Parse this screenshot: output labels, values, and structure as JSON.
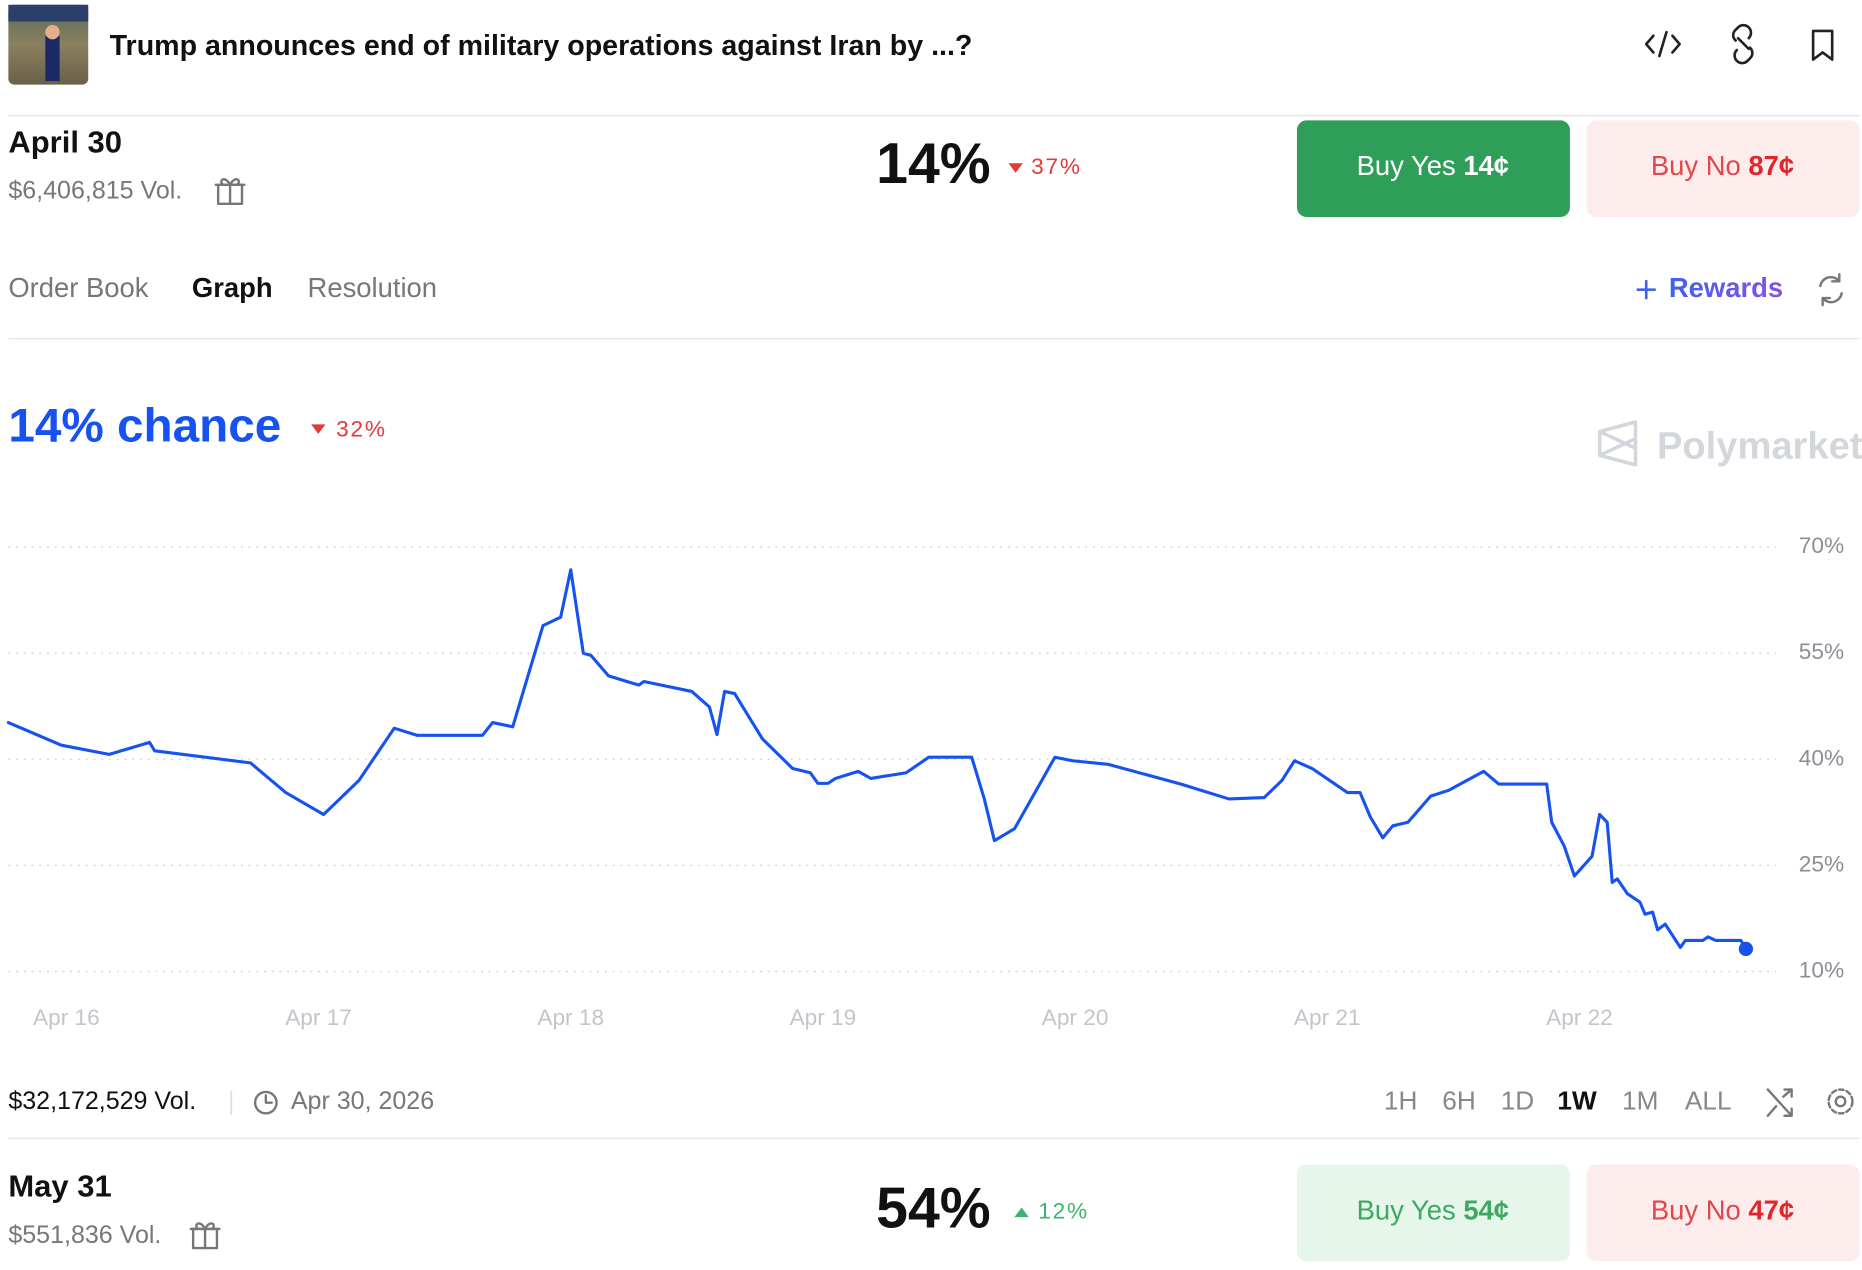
{
  "header": {
    "title": "Trump announces end of military operations against Iran by ...?"
  },
  "markets": [
    {
      "date": "April 30",
      "volume": "$6,406,815 Vol.",
      "chance": "14%",
      "change": "37%",
      "direction": "down",
      "buy_yes": "Buy Yes",
      "yes_price": "14¢",
      "buy_no": "Buy No",
      "no_price": "87¢",
      "expanded": true
    },
    {
      "date": "May 31",
      "volume": "$551,836 Vol.",
      "chance": "54%",
      "change": "12%",
      "direction": "up",
      "buy_yes": "Buy Yes",
      "yes_price": "54¢",
      "buy_no": "Buy No",
      "no_price": "47¢",
      "expanded": false
    }
  ],
  "tabs": [
    "Order Book",
    "Graph",
    "Resolution"
  ],
  "active_tab": "Graph",
  "rewards": "Rewards",
  "watermark": "Polymarket",
  "footer": {
    "volume": "$32,172,529 Vol.",
    "end_date": "Apr 30, 2026",
    "ranges": [
      "1H",
      "6H",
      "1D",
      "1W",
      "1M",
      "ALL"
    ],
    "active_range": "1W"
  },
  "chart_data": {
    "type": "line",
    "title": "14% chance",
    "change": "32%",
    "color": "#1652f0",
    "grid": true,
    "x": [
      -0.23,
      -0.02,
      0.17,
      0.33,
      0.35,
      0.73,
      0.87,
      1.02,
      1.16,
      1.3,
      1.39,
      1.65,
      1.69,
      1.77,
      1.89,
      1.96,
      2.0,
      2.05,
      2.08,
      2.15,
      2.27,
      2.29,
      2.48,
      2.55,
      2.58,
      2.61,
      2.65,
      2.76,
      2.88,
      2.95,
      2.98,
      3.02,
      3.05,
      3.14,
      3.19,
      3.33,
      3.42,
      3.59,
      3.64,
      3.68,
      3.76,
      3.92,
      3.99,
      4.13,
      4.42,
      4.61,
      4.75,
      4.82,
      4.87,
      4.94,
      5.08,
      5.13,
      5.17,
      5.22,
      5.26,
      5.32,
      5.41,
      5.48,
      5.62,
      5.68,
      5.87,
      5.89,
      5.94,
      5.98,
      6.05,
      6.08,
      6.11,
      6.13,
      6.15,
      6.19,
      6.24,
      6.26,
      6.29,
      6.31,
      6.34,
      6.4,
      6.42,
      6.49,
      6.51,
      6.54,
      6.64,
      6.66
    ],
    "values": [
      45.2,
      42.0,
      40.7,
      42.4,
      41.2,
      39.5,
      35.3,
      32.2,
      37.0,
      44.4,
      43.4,
      43.4,
      45.2,
      44.6,
      58.9,
      60.1,
      66.8,
      55.0,
      54.7,
      51.8,
      50.5,
      51.0,
      49.6,
      47.4,
      43.5,
      49.6,
      49.3,
      42.9,
      38.7,
      38.1,
      36.6,
      36.6,
      37.3,
      38.3,
      37.3,
      38.1,
      40.3,
      40.3,
      34.4,
      28.5,
      30.2,
      40.3,
      39.8,
      39.3,
      36.5,
      34.4,
      34.6,
      37.0,
      39.8,
      38.7,
      35.3,
      35.3,
      31.9,
      28.9,
      30.6,
      31.1,
      34.8,
      35.6,
      38.3,
      36.5,
      36.5,
      31.1,
      27.7,
      23.5,
      26.3,
      32.2,
      31.1,
      22.6,
      23.1,
      21.0,
      19.8,
      18.1,
      18.4,
      15.9,
      16.7,
      13.4,
      14.4,
      14.4,
      14.9,
      14.4,
      14.4,
      13.2
    ],
    "xlim": [
      -0.23,
      6.78
    ],
    "xticks": [
      {
        "value": 0,
        "label": "Apr 16"
      },
      {
        "value": 1,
        "label": "Apr 17"
      },
      {
        "value": 2,
        "label": "Apr 18"
      },
      {
        "value": 3,
        "label": "Apr 19"
      },
      {
        "value": 4,
        "label": "Apr 20"
      },
      {
        "value": 5,
        "label": "Apr 21"
      },
      {
        "value": 6,
        "label": "Apr 22"
      }
    ],
    "ylim": [
      10,
      70
    ],
    "yticks": [
      {
        "value": 70,
        "label": "70%"
      },
      {
        "value": 55,
        "label": "55%"
      },
      {
        "value": 40,
        "label": "40%"
      },
      {
        "value": 25,
        "label": "25%"
      },
      {
        "value": 10,
        "label": "10%"
      }
    ]
  }
}
